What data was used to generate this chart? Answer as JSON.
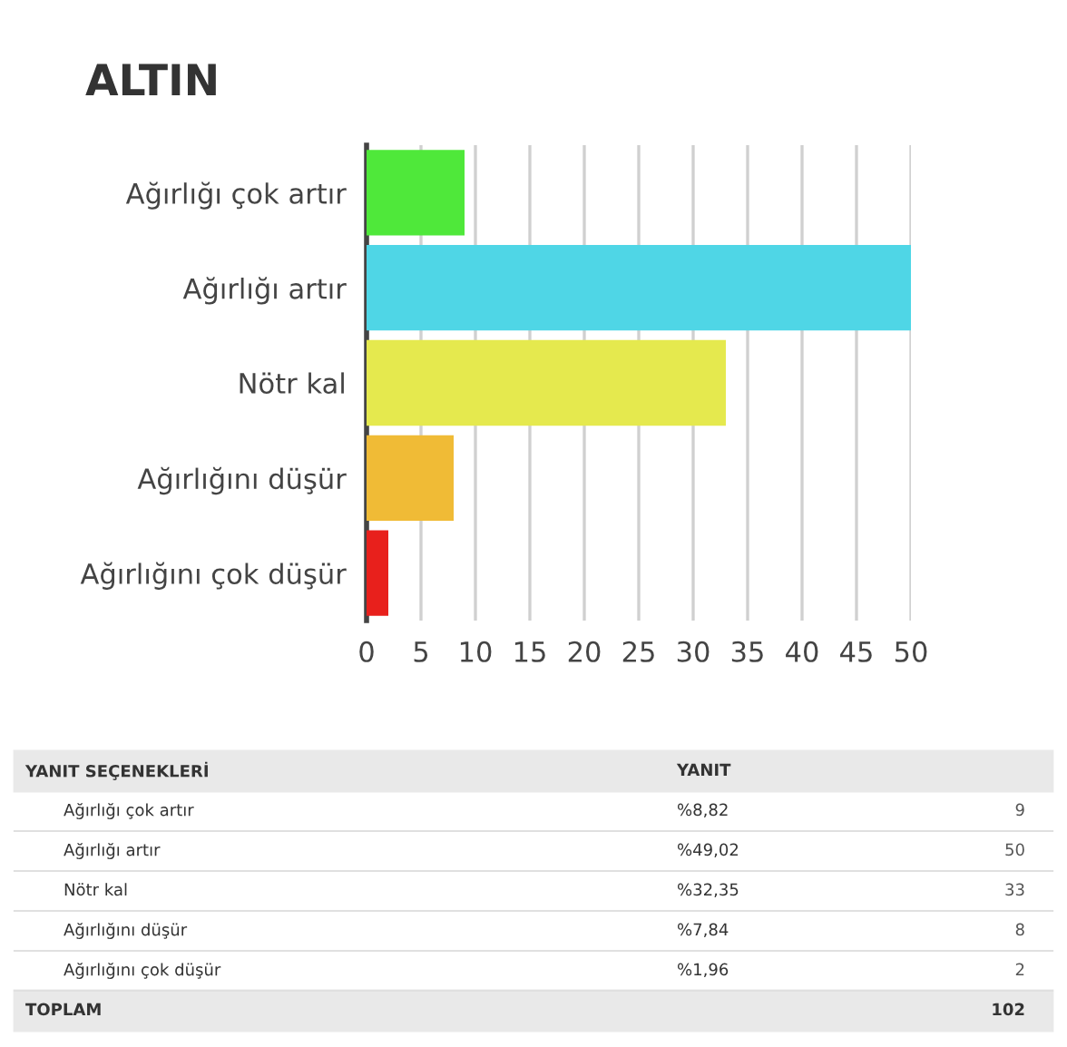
{
  "chart_data": {
    "type": "bar",
    "orientation": "horizontal",
    "title": "ALTIN",
    "categories": [
      "Ağırlığı çok artır",
      "Ağırlığı artır",
      "Nötr kal",
      "Ağırlığını düşür",
      "Ağırlığını çok düşür"
    ],
    "values": [
      9,
      50,
      33,
      8,
      2
    ],
    "colors": [
      "#4fe83a",
      "#4fd6e6",
      "#e5e94e",
      "#f0bb36",
      "#e8201c"
    ],
    "xlim": [
      0,
      50
    ],
    "xticks": [
      0,
      5,
      10,
      15,
      20,
      25,
      30,
      35,
      40,
      45,
      50
    ],
    "grid": "x",
    "annotations": [
      "YANIT SEÇENEKLERİ",
      "YANIT",
      "%8,82",
      "%49,02",
      "%32,35",
      "%7,84",
      "%1,96",
      "TOPLAM",
      "102",
      "9",
      "50",
      "33",
      "8",
      "2"
    ]
  }
}
